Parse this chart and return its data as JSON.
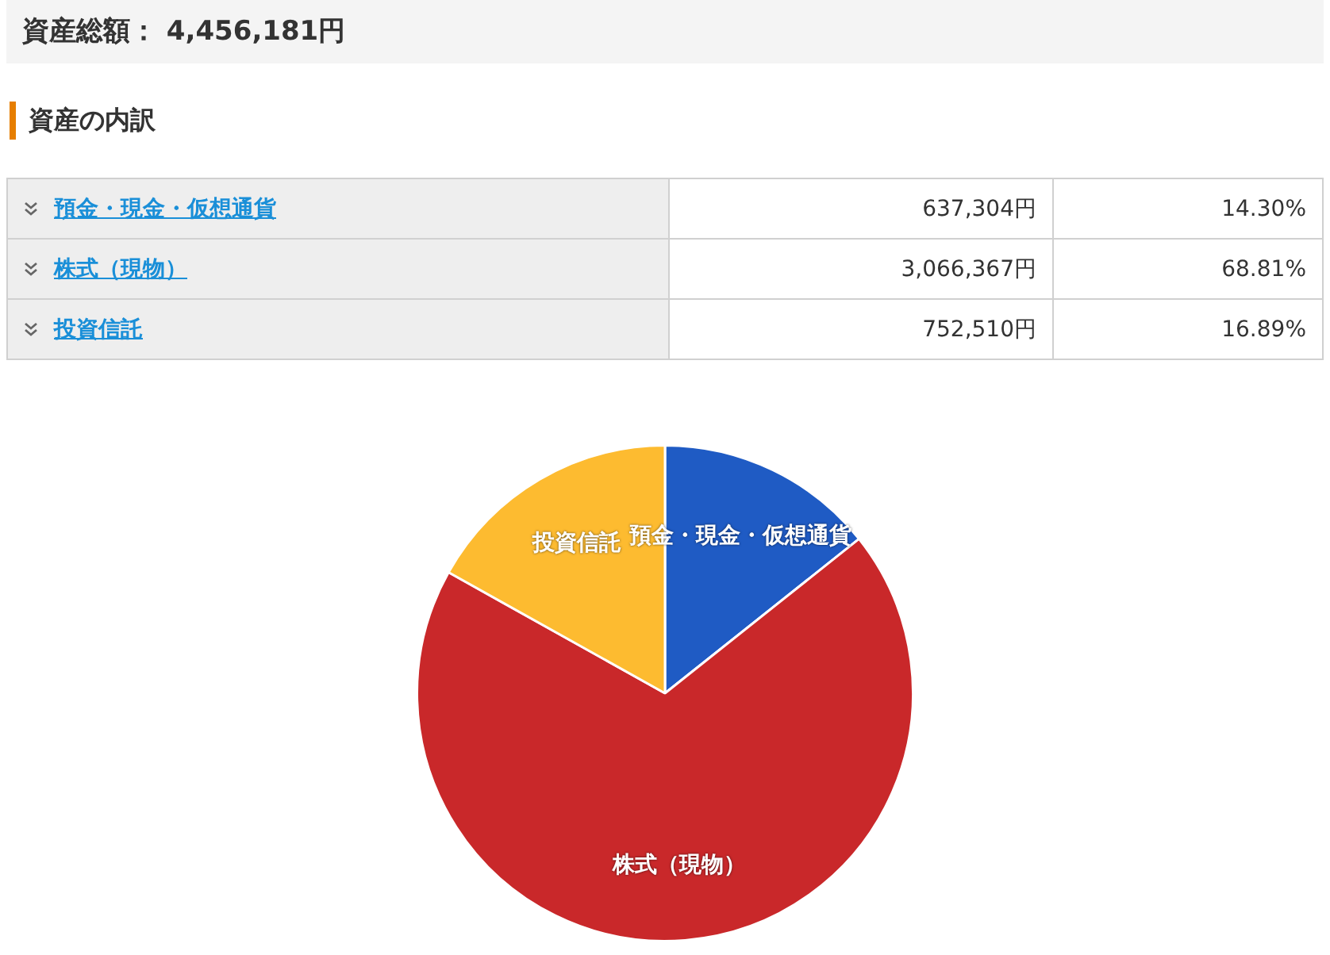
{
  "chart_data": {
    "type": "pie",
    "title": "資産総額： 4,456,181円",
    "subtitle": "資産の内訳",
    "categories": [
      "預金・現金・仮想通貨",
      "株式（現物）",
      "投資信託"
    ],
    "values": [
      14.3,
      68.81,
      16.89
    ],
    "annotations": [
      "637,304円",
      "14.30%",
      "3,066,367円",
      "68.81%",
      "752,510円",
      "16.89%"
    ],
    "colors": [
      "#1f5bc4",
      "#c9282a",
      "#fdbb30"
    ],
    "legend": false
  }
}
